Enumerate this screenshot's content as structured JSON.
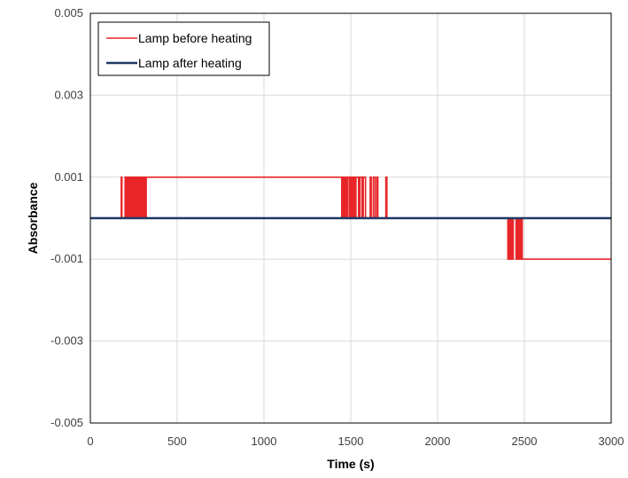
{
  "chart_data": {
    "type": "line",
    "title": "",
    "xlabel": "Time (s)",
    "ylabel": "Absorbance",
    "xlim": [
      0,
      3000
    ],
    "ylim": [
      -0.005,
      0.005
    ],
    "xticks": [
      0,
      500,
      1000,
      1500,
      2000,
      2500,
      3000
    ],
    "xtick_labels": [
      "0",
      "500",
      "1000",
      "1500",
      "2000",
      "2500",
      "3000"
    ],
    "yticks": [
      -0.005,
      -0.003,
      -0.001,
      0.001,
      0.003,
      0.005
    ],
    "ytick_labels": [
      "-0.005",
      "-0.003",
      "-0.001",
      "0.001",
      "0.003",
      "0.005"
    ],
    "grid": true,
    "legend_position": "top-left",
    "series": [
      {
        "name": "Lamp before heating",
        "color": "#e8262a",
        "points": [
          [
            0,
            0
          ],
          [
            178,
            0
          ],
          [
            178,
            0.001
          ],
          [
            182,
            0.001
          ],
          [
            182,
            0
          ],
          [
            200,
            0
          ],
          [
            200,
            0.001
          ],
          [
            207,
            0.001
          ],
          [
            207,
            0
          ],
          [
            212,
            0
          ],
          [
            212,
            0.001
          ],
          [
            218,
            0.001
          ],
          [
            218,
            0
          ],
          [
            222,
            0
          ],
          [
            222,
            0.001
          ],
          [
            229,
            0.001
          ],
          [
            229,
            0
          ],
          [
            233,
            0
          ],
          [
            233,
            0.001
          ],
          [
            240,
            0.001
          ],
          [
            240,
            0
          ],
          [
            244,
            0
          ],
          [
            244,
            0.001
          ],
          [
            251,
            0.001
          ],
          [
            251,
            0
          ],
          [
            255,
            0
          ],
          [
            255,
            0.001
          ],
          [
            262,
            0.001
          ],
          [
            262,
            0
          ],
          [
            266,
            0
          ],
          [
            266,
            0.001
          ],
          [
            273,
            0.001
          ],
          [
            273,
            0
          ],
          [
            277,
            0
          ],
          [
            277,
            0.001
          ],
          [
            284,
            0.001
          ],
          [
            284,
            0
          ],
          [
            288,
            0
          ],
          [
            288,
            0.001
          ],
          [
            295,
            0.001
          ],
          [
            295,
            0
          ],
          [
            299,
            0
          ],
          [
            299,
            0.001
          ],
          [
            306,
            0.001
          ],
          [
            306,
            0
          ],
          [
            310,
            0
          ],
          [
            310,
            0.001
          ],
          [
            318,
            0.001
          ],
          [
            318,
            0
          ],
          [
            322,
            0
          ],
          [
            322,
            0.001
          ],
          [
            1448,
            0.001
          ],
          [
            1448,
            0
          ],
          [
            1455,
            0
          ],
          [
            1455,
            0.001
          ],
          [
            1462,
            0.001
          ],
          [
            1462,
            0
          ],
          [
            1468,
            0
          ],
          [
            1468,
            0.001
          ],
          [
            1476,
            0.001
          ],
          [
            1476,
            0
          ],
          [
            1482,
            0
          ],
          [
            1482,
            0.001
          ],
          [
            1492,
            0.001
          ],
          [
            1492,
            0
          ],
          [
            1500,
            0
          ],
          [
            1500,
            0.001
          ],
          [
            1508,
            0.001
          ],
          [
            1508,
            0
          ],
          [
            1515,
            0
          ],
          [
            1515,
            0.001
          ],
          [
            1522,
            0.001
          ],
          [
            1522,
            0
          ],
          [
            1530,
            0
          ],
          [
            1530,
            0.001
          ],
          [
            1545,
            0.001
          ],
          [
            1545,
            0
          ],
          [
            1553,
            0
          ],
          [
            1553,
            0.001
          ],
          [
            1565,
            0.001
          ],
          [
            1565,
            0
          ],
          [
            1572,
            0
          ],
          [
            1572,
            0.001
          ],
          [
            1585,
            0.001
          ],
          [
            1585,
            0
          ],
          [
            1612,
            0
          ],
          [
            1612,
            0.001
          ],
          [
            1618,
            0.001
          ],
          [
            1618,
            0
          ],
          [
            1630,
            0
          ],
          [
            1630,
            0.001
          ],
          [
            1640,
            0.001
          ],
          [
            1640,
            0
          ],
          [
            1650,
            0
          ],
          [
            1650,
            0.001
          ],
          [
            1656,
            0.001
          ],
          [
            1656,
            0
          ],
          [
            1702,
            0
          ],
          [
            1702,
            0.001
          ],
          [
            1708,
            0.001
          ],
          [
            1708,
            0
          ],
          [
            2405,
            0
          ],
          [
            2405,
            -0.001
          ],
          [
            2412,
            -0.001
          ],
          [
            2412,
            0
          ],
          [
            2418,
            0
          ],
          [
            2418,
            -0.001
          ],
          [
            2425,
            -0.001
          ],
          [
            2425,
            0
          ],
          [
            2430,
            0
          ],
          [
            2430,
            -0.001
          ],
          [
            2436,
            -0.001
          ],
          [
            2436,
            0
          ],
          [
            2452,
            0
          ],
          [
            2452,
            -0.001
          ],
          [
            2458,
            -0.001
          ],
          [
            2458,
            0
          ],
          [
            2465,
            0
          ],
          [
            2465,
            -0.001
          ],
          [
            2470,
            -0.001
          ],
          [
            2470,
            0
          ],
          [
            2476,
            0
          ],
          [
            2476,
            -0.001
          ],
          [
            2482,
            -0.001
          ],
          [
            2482,
            0
          ],
          [
            2488,
            0
          ],
          [
            2488,
            -0.001
          ],
          [
            3000,
            -0.001
          ]
        ]
      },
      {
        "name": "Lamp after heating",
        "color": "#1f3864",
        "points": [
          [
            0,
            0
          ],
          [
            3000,
            0
          ]
        ]
      }
    ]
  }
}
